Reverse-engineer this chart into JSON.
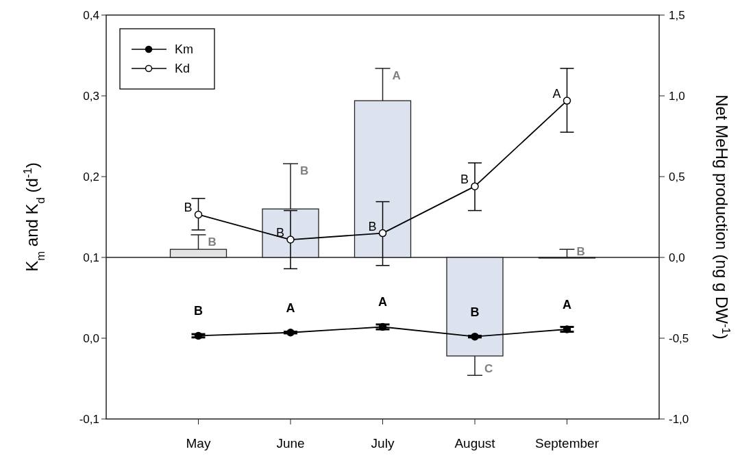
{
  "chart_data": {
    "type": "line",
    "categories": [
      "May",
      "June",
      "July",
      "August",
      "September"
    ],
    "ylabel": "K$_{m}$ and K$_{d}$ (d$^{-1}$)",
    "y2label": "Net MeHg production (ng g DW$^{-1}$)",
    "ylim": [
      -0.1,
      0.4
    ],
    "yticks": [
      {
        "value": -0.1,
        "label": "-0,1"
      },
      {
        "value": 0,
        "label": "0,0"
      },
      {
        "value": 0.1,
        "label": "0,1"
      },
      {
        "value": 0.2,
        "label": "0,2"
      },
      {
        "value": 0.3,
        "label": "0,3"
      },
      {
        "value": 0.4,
        "label": "0,4"
      }
    ],
    "y2lim": [
      -1,
      1.5
    ],
    "y2ticks": [
      {
        "value": -1,
        "label": "-1,0"
      },
      {
        "value": -0.5,
        "label": "-0,5"
      },
      {
        "value": 0,
        "label": "0,0"
      },
      {
        "value": 0.5,
        "label": "0,5"
      },
      {
        "value": 1,
        "label": "1,0"
      },
      {
        "value": 1.5,
        "label": "1,5"
      }
    ],
    "legend": "top left",
    "ref_lines": [
      {
        "axis": "y2",
        "value": 0,
        "color": "#222222"
      }
    ],
    "series": [
      {
        "type": "bar",
        "axis": "y2",
        "colors": [
          "#e4e4e4",
          "#dde3ee",
          "#dde3ee",
          "#dde3ee",
          "#dde3ee"
        ],
        "values": [
          0.05,
          0.3,
          0.97,
          -0.61,
          0
        ],
        "errors": [
          [
            0.05,
            0.14
          ],
          [
            0.3,
            0.58
          ],
          [
            0.97,
            1.17
          ],
          [
            -0.73,
            -0.61
          ],
          [
            0,
            0.05
          ]
        ],
        "value_labels": [
          "B",
          "B",
          "A",
          "C",
          "B"
        ]
      },
      {
        "name": "Km",
        "color": "#000000",
        "marker": "circle",
        "line_style": "solid",
        "values": [
          0.003,
          0.007,
          0.014,
          0.002,
          0.011
        ],
        "errors": [
          0.002,
          0.001,
          0.003,
          0.001,
          0.003
        ],
        "value_labels": [
          "B",
          "A",
          "A",
          "B",
          "A"
        ]
      },
      {
        "name": "Kd",
        "color": "#000000",
        "marker": "circle",
        "line_style": "solid",
        "values": [
          0.153,
          0.122,
          0.13,
          0.188,
          0.294
        ],
        "errors": [
          [
            0.134,
            0.173
          ],
          [
            0.086,
            0.158
          ],
          [
            0.09,
            0.169
          ],
          [
            0.158,
            0.217
          ],
          [
            0.255,
            0.334
          ]
        ],
        "value_labels": [
          "B",
          "B",
          "B",
          "B",
          "A"
        ]
      }
    ]
  }
}
